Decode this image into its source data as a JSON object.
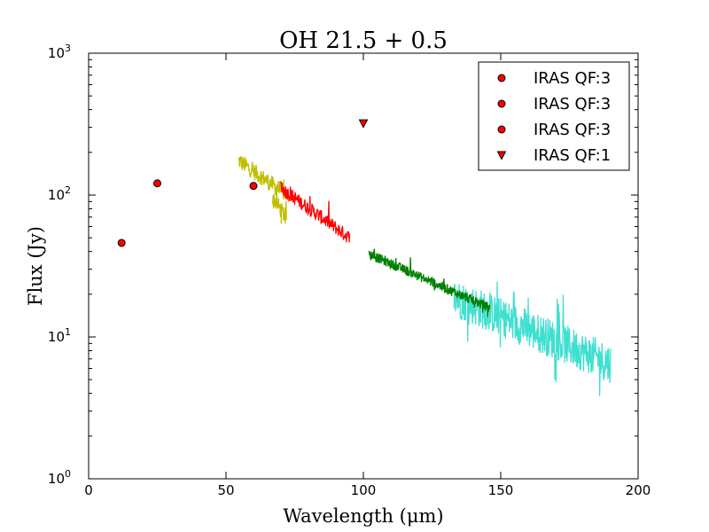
{
  "chart_data": {
    "type": "scatter",
    "title": "OH 21.5 + 0.5",
    "xlabel": "Wavelength (μm)",
    "ylabel": "Flux (Jy)",
    "xlim": [
      0,
      200
    ],
    "ylim": [
      1,
      1000
    ],
    "yscale": "log",
    "x_ticks": [
      0,
      50,
      100,
      150,
      200
    ],
    "x_tick_labels": [
      "0",
      "50",
      "100",
      "150",
      "200"
    ],
    "y_ticks": [
      1,
      10,
      100,
      1000
    ],
    "y_tick_labels": [
      {
        "base": "10",
        "exp": "0"
      },
      {
        "base": "10",
        "exp": "1"
      },
      {
        "base": "10",
        "exp": "2"
      },
      {
        "base": "10",
        "exp": "3"
      }
    ],
    "grid": false,
    "legend_position": "top-right",
    "points": [
      {
        "name": "IRAS QF:3",
        "marker": "circle",
        "color": "#ff0000",
        "x": 12,
        "y": 46
      },
      {
        "name": "IRAS QF:3",
        "marker": "circle",
        "color": "#ff0000",
        "x": 25,
        "y": 121
      },
      {
        "name": "IRAS QF:3",
        "marker": "circle",
        "color": "#ff0000",
        "x": 60,
        "y": 116
      },
      {
        "name": "IRAS QF:1",
        "marker": "triangle-down",
        "color": "#ff0000",
        "x": 100,
        "y": 320
      }
    ],
    "spectra": [
      {
        "name": "spectrum-yellow-a",
        "color": "#bfbf00",
        "x_start": 54.5,
        "x_end": 73,
        "y_start": 175,
        "y_end": 98,
        "noise": 0.06
      },
      {
        "name": "spectrum-yellow-b",
        "color": "#bfbf00",
        "x_start": 67,
        "x_end": 72,
        "y_start": 97,
        "y_end": 68,
        "noise": 0.06
      },
      {
        "name": "spectrum-red",
        "color": "#ff0000",
        "x_start": 70,
        "x_end": 95,
        "y_start": 112,
        "y_end": 50,
        "noise": 0.05
      },
      {
        "name": "spectrum-turquoise",
        "color": "#40e0d0",
        "x_start": 133,
        "x_end": 190,
        "y_start": 19,
        "y_end": 6.5,
        "noise": 0.14
      },
      {
        "name": "spectrum-green",
        "color": "#008000",
        "x_start": 102,
        "x_end": 146,
        "y_start": 38.5,
        "y_end": 16,
        "noise": 0.035
      }
    ]
  }
}
